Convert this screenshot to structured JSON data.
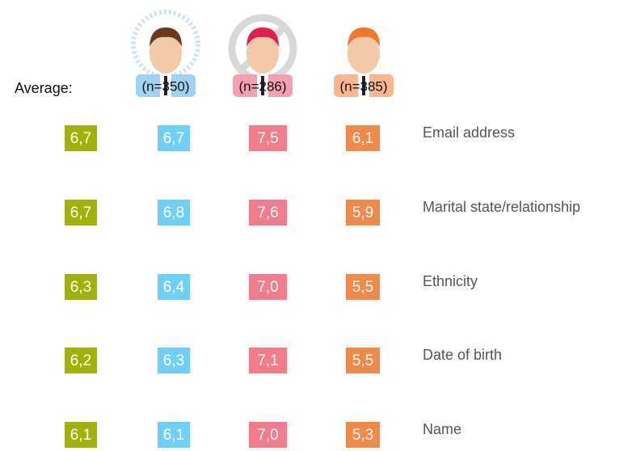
{
  "header": {
    "average_label": "Average:",
    "groups": [
      "(n=350)",
      "(n=286)",
      "(n=385)"
    ]
  },
  "rows": [
    {
      "label": "Email address",
      "values": [
        "6,7",
        "6,7",
        "7,5",
        "6,1"
      ]
    },
    {
      "label": "Marital state/relationship",
      "values": [
        "6,7",
        "6,8",
        "7,6",
        "5,9"
      ]
    },
    {
      "label": "Ethnicity",
      "values": [
        "6,3",
        "6,4",
        "7,0",
        "5,5"
      ]
    },
    {
      "label": "Date of birth",
      "values": [
        "6,2",
        "6,3",
        "7,1",
        "5,5"
      ]
    },
    {
      "label": "Name",
      "values": [
        "6,1",
        "6,1",
        "7,0",
        "5,3"
      ]
    }
  ]
}
